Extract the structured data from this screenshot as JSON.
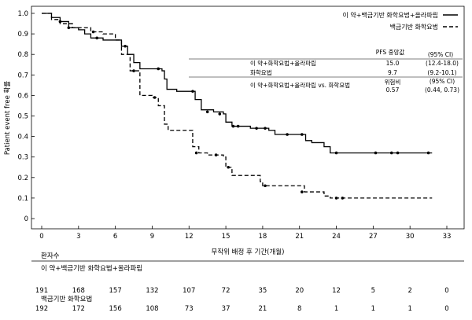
{
  "chart_data": {
    "type": "line",
    "subtype": "kaplan-meier",
    "ylabel": "Patient event free 확률",
    "xlabel": "무작위 배정 후 기간(개월)",
    "xlim": [
      0,
      33
    ],
    "ylim": [
      0,
      1.0
    ],
    "x_ticks": [
      "0",
      "3",
      "6",
      "9",
      "12",
      "15",
      "18",
      "21",
      "24",
      "27",
      "30",
      "33"
    ],
    "y_ticks": [
      "0",
      "0.1",
      "0.2",
      "0.3",
      "0.4",
      "0.5",
      "0.6",
      "0.7",
      "0.8",
      "0.9",
      "1.0"
    ],
    "legend": [
      {
        "label": "이 약+백금기반 화학요법+올라파립",
        "style": "solid"
      },
      {
        "label": "백금기반 화학요법",
        "style": "dashed"
      }
    ],
    "series": [
      {
        "name": "이 약+백금기반 화학요법+올라파립",
        "style": "solid",
        "points": [
          [
            0,
            1.0
          ],
          [
            0.8,
            0.98
          ],
          [
            1.5,
            0.96
          ],
          [
            2.2,
            0.93
          ],
          [
            3,
            0.92
          ],
          [
            3.5,
            0.9
          ],
          [
            4,
            0.88
          ],
          [
            5,
            0.87
          ],
          [
            6,
            0.87
          ],
          [
            6.5,
            0.84
          ],
          [
            7,
            0.8
          ],
          [
            7.5,
            0.76
          ],
          [
            8,
            0.73
          ],
          [
            9,
            0.73
          ],
          [
            9.8,
            0.72
          ],
          [
            10,
            0.68
          ],
          [
            10.2,
            0.63
          ],
          [
            11,
            0.62
          ],
          [
            12,
            0.62
          ],
          [
            12.5,
            0.58
          ],
          [
            13,
            0.53
          ],
          [
            14,
            0.52
          ],
          [
            14.8,
            0.51
          ],
          [
            15,
            0.47
          ],
          [
            15.5,
            0.45
          ],
          [
            16.5,
            0.45
          ],
          [
            17,
            0.44
          ],
          [
            18,
            0.44
          ],
          [
            18.5,
            0.43
          ],
          [
            19,
            0.41
          ],
          [
            21,
            0.41
          ],
          [
            21.5,
            0.38
          ],
          [
            22,
            0.37
          ],
          [
            23,
            0.35
          ],
          [
            23.5,
            0.32
          ],
          [
            27,
            0.32
          ],
          [
            28,
            0.32
          ],
          [
            31.8,
            0.32
          ]
        ],
        "censored": [
          [
            1.5,
            0.96
          ],
          [
            4.5,
            0.88
          ],
          [
            6.8,
            0.84
          ],
          [
            9.5,
            0.73
          ],
          [
            12.3,
            0.62
          ],
          [
            13.5,
            0.52
          ],
          [
            14.5,
            0.51
          ],
          [
            15.6,
            0.45
          ],
          [
            16,
            0.45
          ],
          [
            17.5,
            0.44
          ],
          [
            18.2,
            0.44
          ],
          [
            20,
            0.41
          ],
          [
            21.2,
            0.41
          ],
          [
            24,
            0.32
          ],
          [
            27.2,
            0.32
          ],
          [
            28.5,
            0.32
          ],
          [
            29,
            0.32
          ],
          [
            31.5,
            0.32
          ]
        ]
      },
      {
        "name": "백금기반 화학요법",
        "style": "dashed",
        "points": [
          [
            0,
            1.0
          ],
          [
            0.8,
            0.97
          ],
          [
            1.5,
            0.95
          ],
          [
            2.5,
            0.93
          ],
          [
            4,
            0.91
          ],
          [
            4.5,
            0.91
          ],
          [
            5,
            0.9
          ],
          [
            6,
            0.87
          ],
          [
            6.5,
            0.8
          ],
          [
            7.2,
            0.72
          ],
          [
            8,
            0.6
          ],
          [
            9,
            0.59
          ],
          [
            9.5,
            0.55
          ],
          [
            10,
            0.46
          ],
          [
            10.3,
            0.43
          ],
          [
            12,
            0.43
          ],
          [
            12.3,
            0.35
          ],
          [
            12.8,
            0.32
          ],
          [
            13.5,
            0.31
          ],
          [
            14,
            0.31
          ],
          [
            14.8,
            0.3
          ],
          [
            15,
            0.25
          ],
          [
            15.5,
            0.21
          ],
          [
            17,
            0.21
          ],
          [
            17.8,
            0.18
          ],
          [
            18,
            0.16
          ],
          [
            21,
            0.16
          ],
          [
            21.4,
            0.13
          ],
          [
            23,
            0.11
          ],
          [
            23.5,
            0.1
          ],
          [
            31.8,
            0.1
          ]
        ],
        "censored": [
          [
            2.2,
            0.93
          ],
          [
            4.2,
            0.91
          ],
          [
            7.5,
            0.72
          ],
          [
            9.2,
            0.59
          ],
          [
            12.6,
            0.32
          ],
          [
            14.2,
            0.31
          ],
          [
            15.2,
            0.25
          ],
          [
            18.2,
            0.16
          ],
          [
            21.2,
            0.13
          ],
          [
            24,
            0.1
          ],
          [
            24.5,
            0.1
          ]
        ]
      }
    ],
    "table": {
      "header": [
        "PFS 중앙값",
        "(95% CI)"
      ],
      "rows": [
        {
          "label": "이 약+화학요법+올라파립",
          "median": "15.0",
          "ci": "(12.4-18.0)"
        },
        {
          "label": "화학요법",
          "median": "9.7",
          "ci": "(9.2-10.1)"
        }
      ],
      "hr_label": "이 약+화학요법+올라파립 vs. 화학요법",
      "hr_header": "위험비",
      "hr_value": "0.57",
      "hr_ci_header": "(95% CI)",
      "hr_ci": "(0.44, 0.73)"
    },
    "at_risk": {
      "title": "환자수",
      "groups": [
        {
          "label": "이 약+백금기반 화학요법+올라파립",
          "values": [
            "191",
            "168",
            "157",
            "132",
            "107",
            "72",
            "35",
            "20",
            "12",
            "5",
            "2",
            "0"
          ]
        },
        {
          "label": "백금기반 화학요법",
          "values": [
            "192",
            "172",
            "156",
            "108",
            "73",
            "37",
            "21",
            "8",
            "1",
            "1",
            "1",
            "0"
          ]
        }
      ]
    }
  }
}
